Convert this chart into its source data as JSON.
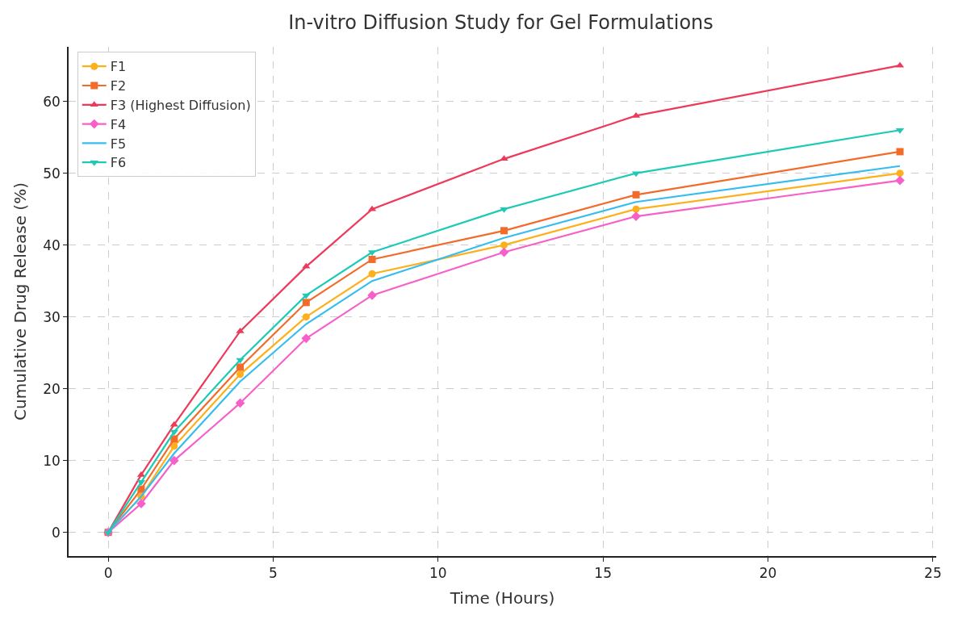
{
  "chart_data": {
    "type": "line",
    "title": "In-vitro Diffusion Study for Gel Formulations",
    "xlabel": "Time (Hours)",
    "ylabel": "Cumulative Drug Release (%)",
    "x": [
      0,
      1,
      2,
      4,
      6,
      8,
      12,
      16,
      24
    ],
    "series": [
      {
        "name": "F1",
        "color": "#fdb01a",
        "marker": "circle",
        "values": [
          0,
          5,
          12,
          22,
          30,
          36,
          40,
          45,
          50
        ]
      },
      {
        "name": "F2",
        "color": "#f26b2a",
        "marker": "square",
        "values": [
          0,
          6,
          13,
          23,
          32,
          38,
          42,
          47,
          53
        ]
      },
      {
        "name": "F3 (Highest Diffusion)",
        "color": "#ee3a5a",
        "marker": "triangle",
        "values": [
          0,
          8,
          15,
          28,
          37,
          45,
          52,
          58,
          65
        ]
      },
      {
        "name": "F4",
        "color": "#f660c8",
        "marker": "diamond",
        "values": [
          0,
          4,
          10,
          18,
          27,
          33,
          39,
          44,
          49
        ]
      },
      {
        "name": "F5",
        "color": "#36bdf0",
        "marker": "none",
        "values": [
          0,
          5,
          11,
          21,
          29,
          35,
          41,
          46,
          51
        ]
      },
      {
        "name": "F6",
        "color": "#1dcab5",
        "marker": "triangle-down",
        "values": [
          0,
          7,
          14,
          24,
          33,
          39,
          45,
          50,
          56
        ]
      }
    ],
    "xlim": [
      -1.2,
      25.1
    ],
    "ylim": [
      -3.3,
      67.6
    ],
    "xticks": [
      0,
      5,
      10,
      15,
      20,
      25
    ],
    "yticks": [
      0,
      10,
      20,
      30,
      40,
      50,
      60
    ],
    "grid": true,
    "legend": "top left",
    "line_style": "solid"
  }
}
